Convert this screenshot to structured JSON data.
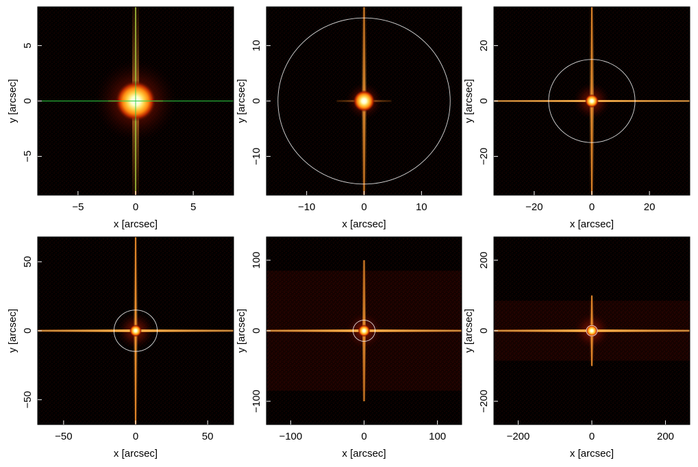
{
  "figure": {
    "background": "#ffffff",
    "panel_background": "#000000",
    "circle_color": "#ffffff",
    "crosshair_color": "#2ecc40"
  },
  "chart_data": [
    {
      "type": "heatmap",
      "xlabel": "x [arcsec]",
      "ylabel": "y [arcsec]",
      "xlim": [
        -8.5,
        8.5
      ],
      "ylim": [
        -8.5,
        8.5
      ],
      "xticks": [
        -5,
        0,
        5
      ],
      "yticks": [
        -5,
        0,
        5
      ],
      "source": {
        "x": 0,
        "y": 0
      },
      "crosshair": true,
      "circle_radius": null,
      "readout_band_halfwidth": null,
      "spike_length": 8.5
    },
    {
      "type": "heatmap",
      "xlabel": "x [arcsec]",
      "ylabel": "y [arcsec]",
      "xlim": [
        -17,
        17
      ],
      "ylim": [
        -17,
        17
      ],
      "xticks": [
        -10,
        0,
        10
      ],
      "yticks": [
        -10,
        0,
        10
      ],
      "source": {
        "x": 0,
        "y": 0
      },
      "crosshair": false,
      "circle_radius": 15,
      "readout_band_halfwidth": null,
      "spike_length": 17
    },
    {
      "type": "heatmap",
      "xlabel": "x [arcsec]",
      "ylabel": "y [arcsec]",
      "xlim": [
        -34,
        34
      ],
      "ylim": [
        -34,
        34
      ],
      "xticks": [
        -20,
        0,
        20
      ],
      "yticks": [
        -20,
        0,
        20
      ],
      "source": {
        "x": 0,
        "y": 0
      },
      "crosshair": false,
      "circle_radius": 15,
      "readout_band_halfwidth": null,
      "spike_length": 34
    },
    {
      "type": "heatmap",
      "xlabel": "x [arcsec]",
      "ylabel": "y [arcsec]",
      "xlim": [
        -68,
        68
      ],
      "ylim": [
        -68,
        68
      ],
      "xticks": [
        -50,
        0,
        50
      ],
      "yticks": [
        -50,
        0,
        50
      ],
      "source": {
        "x": 0,
        "y": 0
      },
      "crosshair": false,
      "circle_radius": 15,
      "readout_band_halfwidth": null,
      "spike_length": 68
    },
    {
      "type": "heatmap",
      "xlabel": "x [arcsec]",
      "ylabel": "y [arcsec]",
      "xlim": [
        -133,
        133
      ],
      "ylim": [
        -133,
        133
      ],
      "xticks": [
        -100,
        0,
        100
      ],
      "yticks": [
        -100,
        0,
        100
      ],
      "source": {
        "x": 0,
        "y": 0
      },
      "crosshair": false,
      "circle_radius": 15,
      "readout_band_halfwidth": 85,
      "spike_length": 100
    },
    {
      "type": "heatmap",
      "xlabel": "x [arcsec]",
      "ylabel": "y [arcsec]",
      "xlim": [
        -266,
        266
      ],
      "ylim": [
        -266,
        266
      ],
      "xticks": [
        -200,
        0,
        200
      ],
      "yticks": [
        -200,
        0,
        200
      ],
      "source": {
        "x": 0,
        "y": 0
      },
      "crosshair": false,
      "circle_radius": 15,
      "readout_band_halfwidth": 85,
      "spike_length": 100
    }
  ]
}
